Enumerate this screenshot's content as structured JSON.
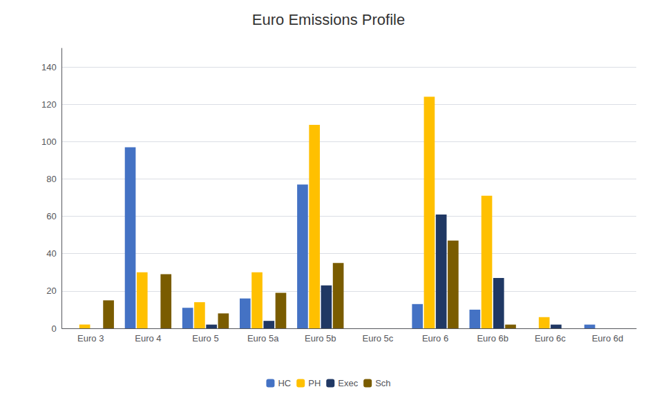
{
  "chart_data": {
    "type": "bar",
    "title": "Euro Emissions Profile",
    "categories": [
      "Euro 3",
      "Euro 4",
      "Euro 5",
      "Euro 5a",
      "Euro 5b",
      "Euro 5c",
      "Euro 6",
      "Euro 6b",
      "Euro 6c",
      "Euro 6d"
    ],
    "series": [
      {
        "name": "HC",
        "color": "#4472C4",
        "values": [
          0,
          97,
          11,
          16,
          77,
          0,
          13,
          10,
          0,
          2
        ]
      },
      {
        "name": "PH",
        "color": "#FFC000",
        "values": [
          2,
          30,
          14,
          30,
          109,
          0,
          124,
          71,
          6,
          0
        ]
      },
      {
        "name": "Exec",
        "color": "#203864",
        "values": [
          0,
          0,
          2,
          4,
          23,
          0,
          61,
          27,
          2,
          0
        ]
      },
      {
        "name": "Sch",
        "color": "#7A5C00",
        "values": [
          15,
          29,
          8,
          19,
          35,
          0,
          47,
          2,
          0,
          0
        ]
      }
    ],
    "ylim": [
      0,
      150
    ],
    "yticks": [
      0,
      20,
      40,
      60,
      80,
      100,
      120,
      140
    ],
    "grid": true,
    "legend": "bottom"
  }
}
